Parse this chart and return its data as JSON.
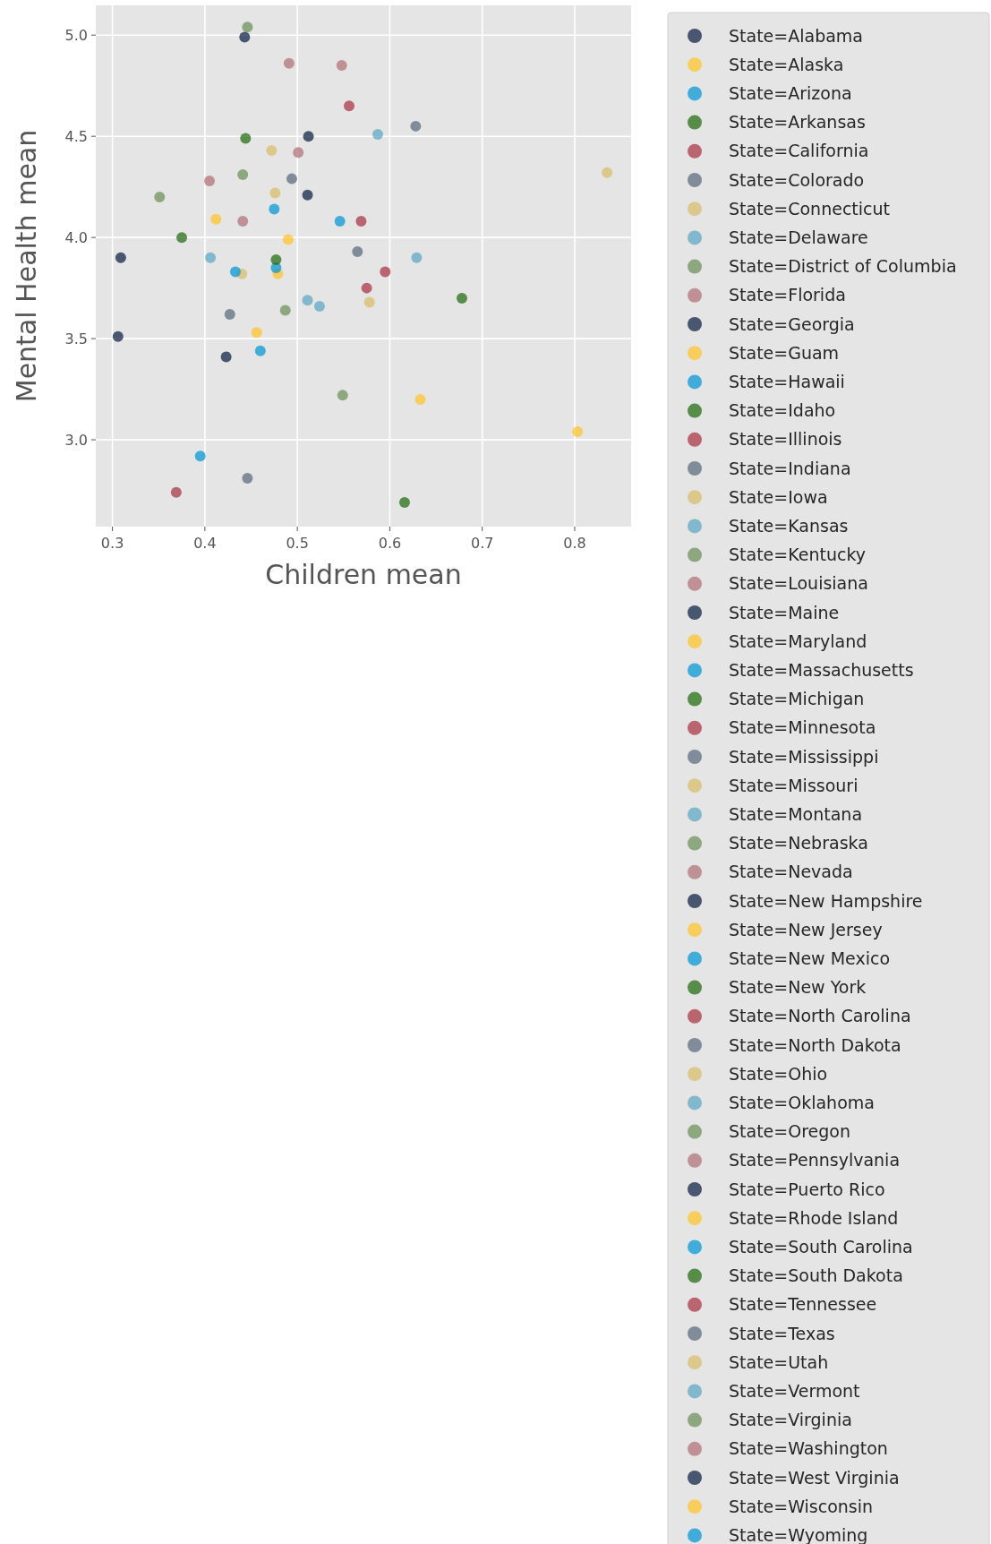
{
  "chart_data": {
    "type": "scatter",
    "xlabel": "Children mean",
    "ylabel": "Mental Health mean",
    "xlim": [
      0.282,
      0.861
    ],
    "ylim": [
      2.571,
      5.147
    ],
    "xticks": [
      0.3,
      0.4,
      0.5,
      0.6,
      0.7,
      0.8
    ],
    "yticks": [
      {
        "value": 3,
        "label": "3.0"
      },
      {
        "value": 3.5,
        "label": "3.5"
      },
      {
        "value": 4,
        "label": "4.0"
      },
      {
        "value": 4.5,
        "label": "4.5"
      },
      {
        "value": 5,
        "label": "5.0"
      }
    ],
    "grid": true,
    "legend": "right",
    "marker": "circle",
    "series": [
      {
        "name": "State=Alabama",
        "color": "#0b1f42",
        "x": [
          0.443
        ],
        "values": [
          4.99
        ]
      },
      {
        "name": "State=Alaska",
        "color": "#ffc425",
        "x": [
          0.412
        ],
        "values": [
          4.09
        ]
      },
      {
        "name": "State=Arizona",
        "color": "#0096d6",
        "x": [
          0.475
        ],
        "values": [
          4.14
        ]
      },
      {
        "name": "State=Arkansas",
        "color": "#1e6b0b",
        "x": [
          0.444
        ],
        "values": [
          4.49
        ]
      },
      {
        "name": "State=California",
        "color": "#a83240",
        "x": [
          0.556
        ],
        "values": [
          4.65
        ]
      },
      {
        "name": "State=Colorado",
        "color": "#5a6a7e",
        "x": [
          0.494
        ],
        "values": [
          4.29
        ]
      },
      {
        "name": "State=Connecticut",
        "color": "#d9bd6a",
        "x": [
          0.472
        ],
        "values": [
          4.43
        ]
      },
      {
        "name": "State=Delaware",
        "color": "#5ba6c4",
        "x": [
          0.406
        ],
        "values": [
          3.9
        ]
      },
      {
        "name": "State=District of Columbia",
        "color": "#6b8f58",
        "x": [
          0.446
        ],
        "values": [
          5.04
        ]
      },
      {
        "name": "State=Florida",
        "color": "#b07078",
        "x": [
          0.491
        ],
        "values": [
          4.86
        ]
      },
      {
        "name": "State=Georgia",
        "color": "#0b1f42",
        "x": [
          0.512
        ],
        "values": [
          4.5
        ]
      },
      {
        "name": "State=Guam",
        "color": "#ffc425",
        "x": [
          0.49
        ],
        "values": [
          3.99
        ]
      },
      {
        "name": "State=Hawaii",
        "color": "#0096d6",
        "x": [
          0.546
        ],
        "values": [
          4.08
        ]
      },
      {
        "name": "State=Idaho",
        "color": "#1e6b0b",
        "x": [
          0.375
        ],
        "values": [
          4.0
        ]
      },
      {
        "name": "State=Illinois",
        "color": "#a83240",
        "x": [
          0.569
        ],
        "values": [
          4.08
        ]
      },
      {
        "name": "State=Indiana",
        "color": "#5a6a7e",
        "x": [
          0.565
        ],
        "values": [
          3.93
        ]
      },
      {
        "name": "State=Iowa",
        "color": "#d9bd6a",
        "x": [
          0.476
        ],
        "values": [
          4.22
        ]
      },
      {
        "name": "State=Kansas",
        "color": "#5ba6c4",
        "x": [
          0.587
        ],
        "values": [
          4.51
        ]
      },
      {
        "name": "State=Kentucky",
        "color": "#6b8f58",
        "x": [
          0.441
        ],
        "values": [
          4.31
        ]
      },
      {
        "name": "State=Louisiana",
        "color": "#b07078",
        "x": [
          0.548
        ],
        "values": [
          4.85
        ]
      },
      {
        "name": "State=Maine",
        "color": "#0b1f42",
        "x": [
          0.511
        ],
        "values": [
          4.21
        ]
      },
      {
        "name": "State=Maryland",
        "color": "#ffc425",
        "x": [
          0.479
        ],
        "values": [
          3.82
        ]
      },
      {
        "name": "State=Massachusetts",
        "color": "#0096d6",
        "x": [
          0.477
        ],
        "values": [
          3.85
        ]
      },
      {
        "name": "State=Michigan",
        "color": "#1e6b0b",
        "x": [
          0.477
        ],
        "values": [
          3.89
        ]
      },
      {
        "name": "State=Minnesota",
        "color": "#a83240",
        "x": [
          0.595
        ],
        "values": [
          3.83
        ]
      },
      {
        "name": "State=Mississippi",
        "color": "#5a6a7e",
        "x": [
          0.628
        ],
        "values": [
          4.55
        ]
      },
      {
        "name": "State=Missouri",
        "color": "#d9bd6a",
        "x": [
          0.44
        ],
        "values": [
          3.82
        ]
      },
      {
        "name": "State=Montana",
        "color": "#5ba6c4",
        "x": [
          0.629
        ],
        "values": [
          3.9
        ]
      },
      {
        "name": "State=Nebraska",
        "color": "#6b8f58",
        "x": [
          0.351
        ],
        "values": [
          4.2
        ]
      },
      {
        "name": "State=Nevada",
        "color": "#b07078",
        "x": [
          0.501
        ],
        "values": [
          4.42
        ]
      },
      {
        "name": "State=New Hampshire",
        "color": "#0b1f42",
        "x": [
          0.309
        ],
        "values": [
          3.9
        ]
      },
      {
        "name": "State=New Jersey",
        "color": "#ffc425",
        "x": [
          0.456
        ],
        "values": [
          3.53
        ]
      },
      {
        "name": "State=New Mexico",
        "color": "#0096d6",
        "x": [
          0.433
        ],
        "values": [
          3.83
        ]
      },
      {
        "name": "State=New York",
        "color": "#1e6b0b",
        "x": [
          0.678
        ],
        "values": [
          3.7
        ]
      },
      {
        "name": "State=North Carolina",
        "color": "#a83240",
        "x": [
          0.575
        ],
        "values": [
          3.75
        ]
      },
      {
        "name": "State=North Dakota",
        "color": "#5a6a7e",
        "x": [
          0.427
        ],
        "values": [
          3.62
        ]
      },
      {
        "name": "State=Ohio",
        "color": "#d9bd6a",
        "x": [
          0.835
        ],
        "values": [
          4.32
        ]
      },
      {
        "name": "State=Oklahoma",
        "color": "#5ba6c4",
        "x": [
          0.511
        ],
        "values": [
          3.69
        ]
      },
      {
        "name": "State=Oregon",
        "color": "#6b8f58",
        "x": [
          0.487
        ],
        "values": [
          3.64
        ]
      },
      {
        "name": "State=Pennsylvania",
        "color": "#b07078",
        "x": [
          0.405
        ],
        "values": [
          4.28
        ]
      },
      {
        "name": "State=Puerto Rico",
        "color": "#0b1f42",
        "x": [
          0.306
        ],
        "values": [
          3.51
        ]
      },
      {
        "name": "State=Rhode Island",
        "color": "#ffc425",
        "x": [
          0.633
        ],
        "values": [
          3.2
        ]
      },
      {
        "name": "State=South Carolina",
        "color": "#0096d6",
        "x": [
          0.46
        ],
        "values": [
          3.44
        ]
      },
      {
        "name": "State=South Dakota",
        "color": "#1e6b0b",
        "x": [
          0.616
        ],
        "values": [
          2.69
        ]
      },
      {
        "name": "State=Tennessee",
        "color": "#a83240",
        "x": [
          0.369
        ],
        "values": [
          2.74
        ]
      },
      {
        "name": "State=Texas",
        "color": "#5a6a7e",
        "x": [
          0.446
        ],
        "values": [
          2.81
        ]
      },
      {
        "name": "State=Utah",
        "color": "#d9bd6a",
        "x": [
          0.578
        ],
        "values": [
          3.68
        ]
      },
      {
        "name": "State=Vermont",
        "color": "#5ba6c4",
        "x": [
          0.524
        ],
        "values": [
          3.66
        ]
      },
      {
        "name": "State=Virginia",
        "color": "#6b8f58",
        "x": [
          0.549
        ],
        "values": [
          3.22
        ]
      },
      {
        "name": "State=Washington",
        "color": "#b07078",
        "x": [
          0.441
        ],
        "values": [
          4.08
        ]
      },
      {
        "name": "State=West Virginia",
        "color": "#0b1f42",
        "x": [
          0.423
        ],
        "values": [
          3.41
        ]
      },
      {
        "name": "State=Wisconsin",
        "color": "#ffc425",
        "x": [
          0.803
        ],
        "values": [
          3.04
        ]
      },
      {
        "name": "State=Wyoming",
        "color": "#0096d6",
        "x": [
          0.395
        ],
        "values": [
          2.92
        ]
      }
    ]
  }
}
